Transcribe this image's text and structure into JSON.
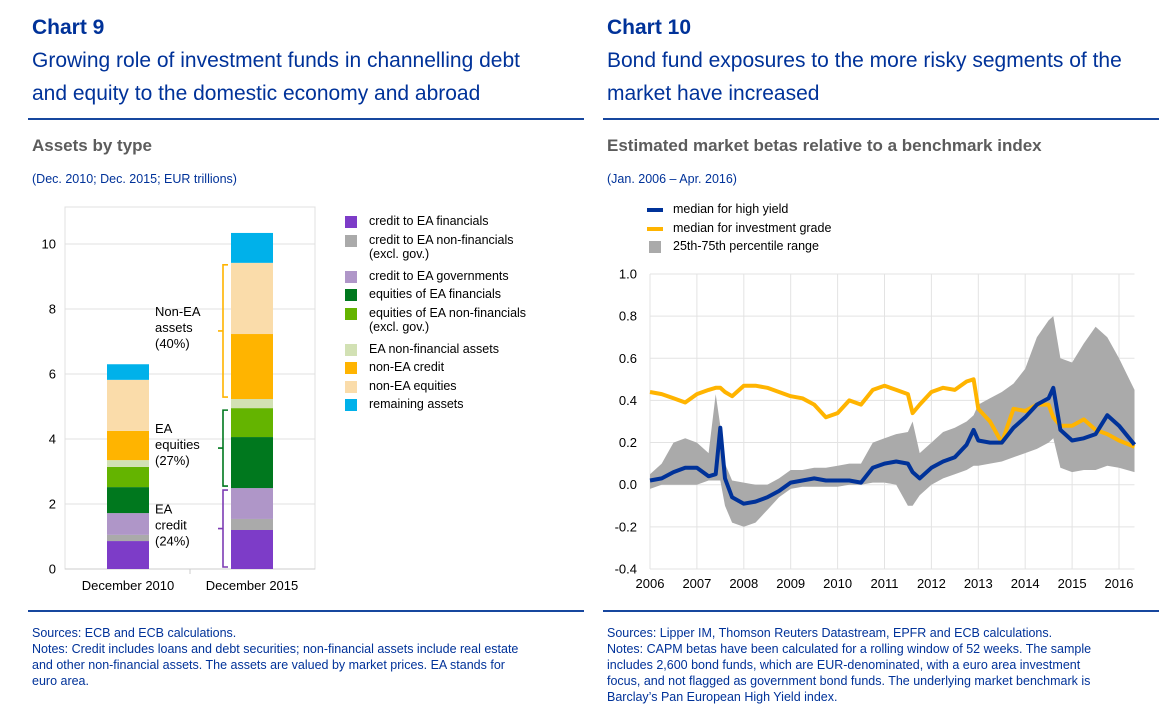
{
  "chart9": {
    "number": "Chart 9",
    "title_line1": "Growing role of investment funds in channelling debt",
    "title_line2": "and equity to the domestic economy and abroad",
    "subtitle": "Assets by type",
    "units": "(Dec. 2010; Dec. 2015; EUR trillions)",
    "sources": "Sources: ECB and ECB calculations.",
    "notes": "Notes: Credit includes loans and debt securities; non-financial assets include real estate\nand other non-financial assets. The assets are valued by market prices. EA stands for\neuro area.",
    "annotations": [
      {
        "lines": [
          "Non-EA",
          "assets",
          "(40%)"
        ],
        "color": "#FFB400"
      },
      {
        "lines": [
          "EA",
          "equities",
          "(27%)"
        ],
        "color": "#00781E"
      },
      {
        "lines": [
          "EA",
          "credit",
          "(24%)"
        ],
        "color": "#7D3CB4"
      }
    ]
  },
  "chart10": {
    "number": "Chart 10",
    "title_line1": "Bond fund exposures to the more risky segments of the",
    "title_line2": "market have increased",
    "subtitle": "Estimated market betas relative to a benchmark index",
    "units": "(Jan. 2006 – Apr. 2016)",
    "sources": "Sources: Lipper IM, Thomson Reuters Datastream, EPFR and ECB calculations.",
    "notes": "Notes: CAPM betas have been calculated for a rolling window of 52 weeks. The sample\nincludes 2,600 bond funds, which are EUR-denominated, with a euro area investment\nfocus, and not flagged as government bond funds. The underlying market benchmark is\nBarclay’s Pan European High Yield index."
  },
  "chart_data": [
    {
      "type": "bar",
      "stacked": true,
      "title": "Assets by type",
      "xlabel": "",
      "ylabel": "EUR trillions",
      "ylim": [
        0,
        11
      ],
      "yticks": [
        0,
        2,
        4,
        6,
        8,
        10
      ],
      "grid": true,
      "legend_position": "right",
      "categories": [
        "December 2010",
        "December 2015"
      ],
      "series": [
        {
          "name": "credit to EA financials",
          "color": "#7D3CC8",
          "values": [
            0.86,
            1.2
          ]
        },
        {
          "name": "credit to EA non-financials\n(excl. gov.)",
          "color": "#AAAAAA",
          "values": [
            0.19,
            0.34
          ]
        },
        {
          "name": "credit to EA governments",
          "color": "#AF96C8",
          "values": [
            0.67,
            0.95
          ]
        },
        {
          "name": "equities of EA financials",
          "color": "#00781E",
          "values": [
            0.8,
            1.57
          ]
        },
        {
          "name": "equities of EA non-financials\n(excl. gov.)",
          "color": "#64B400",
          "values": [
            0.62,
            0.89
          ]
        },
        {
          "name": "EA non-financial assets",
          "color": "#D2E1B4",
          "values": [
            0.21,
            0.28
          ]
        },
        {
          "name": "non-EA credit",
          "color": "#FFB400",
          "values": [
            0.9,
            2.0
          ]
        },
        {
          "name": "non-EA equities",
          "color": "#FADCAA",
          "values": [
            1.57,
            2.19
          ]
        },
        {
          "name": "remaining assets",
          "color": "#00B1EA",
          "values": [
            0.48,
            0.92
          ]
        }
      ]
    },
    {
      "type": "line",
      "title": "Estimated market betas relative to a benchmark index",
      "xlabel": "",
      "ylabel": "",
      "xlim": [
        2006,
        2016.33
      ],
      "ylim": [
        -0.4,
        1.0
      ],
      "xticks": [
        2006,
        2007,
        2008,
        2009,
        2010,
        2011,
        2012,
        2013,
        2014,
        2015,
        2016
      ],
      "yticks": [
        -0.4,
        -0.2,
        0.0,
        0.2,
        0.4,
        0.6,
        0.8,
        1.0
      ],
      "ytick_labels": [
        "-0.4",
        "-0.2",
        "0.0",
        "0.2",
        "0.4",
        "0.6",
        "0.8",
        "1.0"
      ],
      "grid": true,
      "legend_position": "top-left",
      "x": [
        2006.0,
        2006.25,
        2006.5,
        2006.75,
        2007.0,
        2007.25,
        2007.4,
        2007.5,
        2007.6,
        2007.75,
        2008.0,
        2008.25,
        2008.5,
        2008.75,
        2009.0,
        2009.25,
        2009.5,
        2009.75,
        2010.0,
        2010.25,
        2010.5,
        2010.75,
        2011.0,
        2011.25,
        2011.5,
        2011.6,
        2011.75,
        2012.0,
        2012.25,
        2012.5,
        2012.75,
        2012.9,
        2013.0,
        2013.25,
        2013.5,
        2013.75,
        2014.0,
        2014.25,
        2014.5,
        2014.6,
        2014.75,
        2015.0,
        2015.25,
        2015.5,
        2015.75,
        2016.0,
        2016.33
      ],
      "series": [
        {
          "name": "median for high yield",
          "color": "#003299",
          "values": [
            0.02,
            0.03,
            0.06,
            0.08,
            0.08,
            0.04,
            0.05,
            0.27,
            0.03,
            -0.06,
            -0.09,
            -0.08,
            -0.06,
            -0.03,
            0.01,
            0.02,
            0.03,
            0.02,
            0.02,
            0.02,
            0.01,
            0.08,
            0.1,
            0.11,
            0.1,
            0.06,
            0.03,
            0.08,
            0.11,
            0.13,
            0.19,
            0.26,
            0.21,
            0.2,
            0.2,
            0.27,
            0.32,
            0.38,
            0.41,
            0.46,
            0.26,
            0.21,
            0.22,
            0.24,
            0.33,
            0.28,
            0.19
          ]
        },
        {
          "name": "median for investment grade",
          "color": "#FFB400",
          "values": [
            0.44,
            0.43,
            0.41,
            0.39,
            0.43,
            0.45,
            0.46,
            0.46,
            0.44,
            0.42,
            0.47,
            0.47,
            0.46,
            0.44,
            0.42,
            0.41,
            0.38,
            0.32,
            0.34,
            0.4,
            0.38,
            0.45,
            0.47,
            0.45,
            0.43,
            0.34,
            0.38,
            0.44,
            0.46,
            0.45,
            0.49,
            0.5,
            0.36,
            0.3,
            0.2,
            0.36,
            0.35,
            0.38,
            0.38,
            0.32,
            0.28,
            0.28,
            0.31,
            0.26,
            0.24,
            0.21,
            0.18
          ]
        },
        {
          "name": "25th-75th percentile range",
          "color": "#AAAAAA",
          "type": "band",
          "upper": [
            0.05,
            0.1,
            0.2,
            0.22,
            0.2,
            0.15,
            0.43,
            0.28,
            0.1,
            0.02,
            0.01,
            0.0,
            0.0,
            0.03,
            0.07,
            0.07,
            0.08,
            0.08,
            0.09,
            0.1,
            0.1,
            0.2,
            0.22,
            0.24,
            0.25,
            0.3,
            0.15,
            0.2,
            0.25,
            0.27,
            0.3,
            0.33,
            0.38,
            0.41,
            0.44,
            0.48,
            0.55,
            0.7,
            0.78,
            0.8,
            0.6,
            0.58,
            0.67,
            0.75,
            0.7,
            0.6,
            0.45
          ],
          "lower": [
            -0.02,
            0.0,
            0.0,
            0.0,
            0.0,
            0.02,
            0.02,
            0.02,
            -0.1,
            -0.18,
            -0.2,
            -0.18,
            -0.12,
            -0.06,
            -0.02,
            -0.01,
            -0.01,
            -0.01,
            -0.01,
            0.0,
            0.0,
            0.01,
            0.01,
            0.0,
            -0.1,
            -0.1,
            -0.05,
            0.0,
            0.03,
            0.05,
            0.07,
            0.09,
            0.09,
            0.1,
            0.11,
            0.13,
            0.15,
            0.17,
            0.2,
            0.22,
            0.08,
            0.06,
            0.07,
            0.07,
            0.09,
            0.08,
            0.06
          ]
        }
      ]
    }
  ]
}
